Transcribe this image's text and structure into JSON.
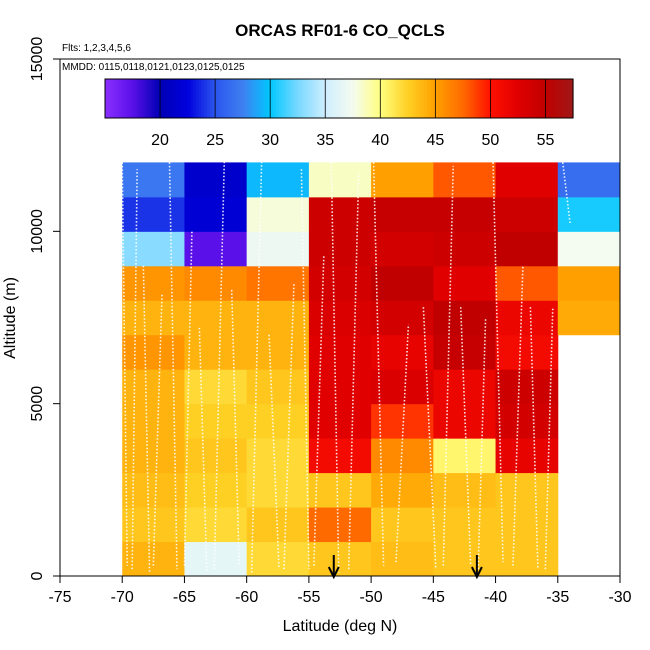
{
  "chart_data": {
    "type": "heatmap",
    "title": "ORCAS RF01-6 CO_QCLS",
    "flights_label": "Flts: 1,2,3,4,5,6",
    "mmdd_label": "MMDD: 0115,0118,0121,0123,0125,0125",
    "xlabel": "Latitude (deg N)",
    "ylabel": "Altitude (m)",
    "xlim": [
      -75,
      -30
    ],
    "ylim": [
      0,
      15000
    ],
    "x_ticks": [
      -75,
      -70,
      -65,
      -60,
      -55,
      -50,
      -45,
      -40,
      -35,
      -30
    ],
    "x_tick_labels": [
      "-75",
      "-70",
      "-65",
      "-60",
      "-55",
      "-50",
      "-45",
      "-40",
      "-35",
      "-30"
    ],
    "y_ticks": [
      0,
      5000,
      10000,
      15000
    ],
    "y_tick_labels": [
      "0",
      "5000",
      "10000",
      "15000"
    ],
    "colorbar": {
      "min": 15,
      "max": 57.5,
      "ticks": [
        20,
        25,
        30,
        35,
        40,
        45,
        50,
        55
      ],
      "tick_labels": [
        "20",
        "25",
        "30",
        "35",
        "40",
        "45",
        "50",
        "55"
      ],
      "stops": [
        {
          "value": 15,
          "color": "#8a30ff"
        },
        {
          "value": 17.5,
          "color": "#5a10e8"
        },
        {
          "value": 20,
          "color": "#0000b4"
        },
        {
          "value": 22.5,
          "color": "#0000dd"
        },
        {
          "value": 25,
          "color": "#2b55ee"
        },
        {
          "value": 27.5,
          "color": "#3f7ff0"
        },
        {
          "value": 30,
          "color": "#00c8ff"
        },
        {
          "value": 32.5,
          "color": "#78d8ff"
        },
        {
          "value": 35,
          "color": "#cfeeff"
        },
        {
          "value": 37.5,
          "color": "#f4fbf0"
        },
        {
          "value": 40,
          "color": "#ffff80"
        },
        {
          "value": 42.5,
          "color": "#ffd024"
        },
        {
          "value": 45,
          "color": "#ffa000"
        },
        {
          "value": 47.5,
          "color": "#ff6a00"
        },
        {
          "value": 50,
          "color": "#ff1000"
        },
        {
          "value": 52.5,
          "color": "#e00000"
        },
        {
          "value": 55,
          "color": "#c00000"
        },
        {
          "value": 57.5,
          "color": "#a01818"
        }
      ]
    },
    "lat_bins": [
      -70,
      -65,
      -60,
      -55,
      -50,
      -45,
      -40,
      -35
    ],
    "alt_bins": [
      0,
      1000,
      2000,
      3000,
      4000,
      5000,
      6000,
      7000,
      8000,
      9000,
      10000,
      11000,
      12000
    ],
    "values": [
      [
        44.0,
        36.5,
        42.0,
        43.0,
        43.5,
        43.0,
        43.0
      ],
      [
        43.0,
        42.0,
        43.0,
        47.5,
        43.0,
        43.0,
        43.0
      ],
      [
        43.5,
        42.5,
        42.0,
        43.0,
        44.5,
        43.5,
        43.0
      ],
      [
        44.0,
        43.0,
        42.0,
        51.0,
        46.0,
        40.5,
        52.0
      ],
      [
        44.0,
        42.5,
        42.5,
        52.5,
        49.0,
        51.5,
        53.5
      ],
      [
        44.0,
        42.0,
        43.0,
        52.5,
        53.0,
        51.5,
        54.0
      ],
      [
        45.5,
        44.0,
        44.0,
        52.5,
        52.0,
        54.5,
        51.0
      ],
      [
        44.0,
        44.0,
        44.0,
        53.0,
        53.5,
        55.0,
        51.5
      ],
      [
        45.5,
        46.0,
        47.0,
        53.5,
        55.0,
        52.5,
        48.0
      ],
      [
        33.0,
        17.5,
        37.0,
        54.0,
        53.5,
        54.0,
        55.0
      ],
      [
        24.0,
        22.0,
        38.0,
        54.0,
        54.5,
        54.5,
        54.0
      ],
      [
        27.0,
        21.5,
        29.5,
        38.5,
        45.0,
        48.0,
        52.5
      ]
    ],
    "extra_cells": [
      {
        "lat": -35,
        "alt": 7000,
        "value": 44.5
      },
      {
        "lat": -35,
        "alt": 8000,
        "value": 45.0
      },
      {
        "lat": -35,
        "alt": 9000,
        "value": 37.5
      },
      {
        "lat": -35,
        "alt": 10000,
        "value": 30.5
      },
      {
        "lat": -35,
        "alt": 11000,
        "value": 26.5
      }
    ],
    "markers": [
      {
        "lat": -53.0,
        "label": "down-arrow"
      },
      {
        "lat": -41.5,
        "label": "down-arrow"
      }
    ],
    "profiles": [
      {
        "lat_start": -70.0,
        "lat_end": -69.6,
        "alt_start": 12000,
        "alt_end": 300
      },
      {
        "lat_start": -69.2,
        "lat_end": -68.8,
        "alt_start": 200,
        "alt_end": 11800
      },
      {
        "lat_start": -68.3,
        "lat_end": -67.8,
        "alt_start": 9000,
        "alt_end": 100
      },
      {
        "lat_start": -67.5,
        "lat_end": -66.8,
        "alt_start": 300,
        "alt_end": 8200
      },
      {
        "lat_start": -66.2,
        "lat_end": -65.6,
        "alt_start": 12000,
        "alt_end": 200
      },
      {
        "lat_start": -65.0,
        "lat_end": -64.4,
        "alt_start": 300,
        "alt_end": 10000
      },
      {
        "lat_start": -63.8,
        "lat_end": -63.2,
        "alt_start": 7200,
        "alt_end": 100
      },
      {
        "lat_start": -62.6,
        "lat_end": -61.8,
        "alt_start": 200,
        "alt_end": 12000
      },
      {
        "lat_start": -61.2,
        "lat_end": -60.6,
        "alt_start": 8300,
        "alt_end": 300
      },
      {
        "lat_start": -59.6,
        "lat_end": -58.8,
        "alt_start": 100,
        "alt_end": 12000
      },
      {
        "lat_start": -58.2,
        "lat_end": -57.4,
        "alt_start": 7000,
        "alt_end": 200
      },
      {
        "lat_start": -57.0,
        "lat_end": -56.2,
        "alt_start": 200,
        "alt_end": 8500
      },
      {
        "lat_start": -55.6,
        "lat_end": -55.0,
        "alt_start": 11800,
        "alt_end": 200
      },
      {
        "lat_start": -54.6,
        "lat_end": -53.8,
        "alt_start": 300,
        "alt_end": 9300
      },
      {
        "lat_start": -53.2,
        "lat_end": -52.6,
        "alt_start": 12000,
        "alt_end": 100
      },
      {
        "lat_start": -51.8,
        "lat_end": -51.0,
        "alt_start": 200,
        "alt_end": 11700
      },
      {
        "lat_start": -49.8,
        "lat_end": -49.0,
        "alt_start": 12000,
        "alt_end": 300
      },
      {
        "lat_start": -48.0,
        "lat_end": -47.0,
        "alt_start": 400,
        "alt_end": 7300
      },
      {
        "lat_start": -45.8,
        "lat_end": -44.8,
        "alt_start": 7800,
        "alt_end": 200
      },
      {
        "lat_start": -44.2,
        "lat_end": -43.4,
        "alt_start": 300,
        "alt_end": 11900
      },
      {
        "lat_start": -42.8,
        "lat_end": -42.0,
        "alt_start": 7800,
        "alt_end": 300
      },
      {
        "lat_start": -41.4,
        "lat_end": -40.8,
        "alt_start": 200,
        "alt_end": 7500
      },
      {
        "lat_start": -40.2,
        "lat_end": -39.4,
        "alt_start": 12000,
        "alt_end": 400
      },
      {
        "lat_start": -38.6,
        "lat_end": -37.8,
        "alt_start": 300,
        "alt_end": 9000
      },
      {
        "lat_start": -37.2,
        "lat_end": -36.6,
        "alt_start": 7800,
        "alt_end": 200
      },
      {
        "lat_start": -36.0,
        "lat_end": -35.4,
        "alt_start": 200,
        "alt_end": 7800
      },
      {
        "lat_start": -34.6,
        "lat_end": -34.0,
        "alt_start": 12000,
        "alt_end": 10200
      }
    ]
  }
}
